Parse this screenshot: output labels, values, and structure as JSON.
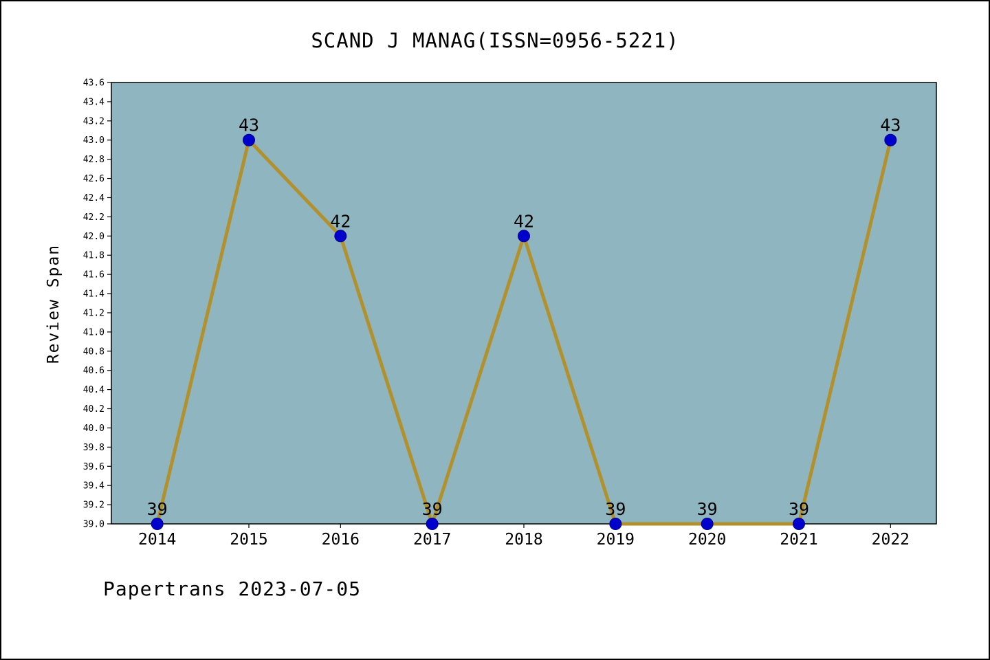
{
  "title": "SCAND J MANAG(ISSN=0956-5221)",
  "footer": {
    "text": "Papertrans 2023-07-05"
  },
  "chart_data": {
    "type": "line",
    "title": "SCAND J MANAG(ISSN=0956-5221)",
    "xlabel": "",
    "ylabel": "Review Span",
    "x": [
      "2014",
      "2015",
      "2016",
      "2017",
      "2018",
      "2019",
      "2020",
      "2021",
      "2022"
    ],
    "values": [
      39,
      43,
      42,
      39,
      42,
      39,
      39,
      39,
      43
    ],
    "point_labels": [
      "39",
      "43",
      "42",
      "39",
      "42",
      "39",
      "39",
      "39",
      "43"
    ],
    "ylim": [
      39.0,
      43.6
    ],
    "ytick_labels": [
      "39.0",
      "39.2",
      "39.4",
      "39.6",
      "39.8",
      "40.0",
      "40.2",
      "40.4",
      "40.6",
      "40.8",
      "41.0",
      "41.2",
      "41.4",
      "41.6",
      "41.8",
      "42.0",
      "42.2",
      "42.4",
      "42.6",
      "42.8",
      "43.0",
      "43.2",
      "43.4",
      "43.6"
    ],
    "grid": false,
    "legend": "none",
    "plot_bg_color": "#8fb5c1",
    "line_color": "#b2912c",
    "marker_color": "#0000cd",
    "marker_edge_color": "#00008b",
    "axis_color": "#000000"
  }
}
